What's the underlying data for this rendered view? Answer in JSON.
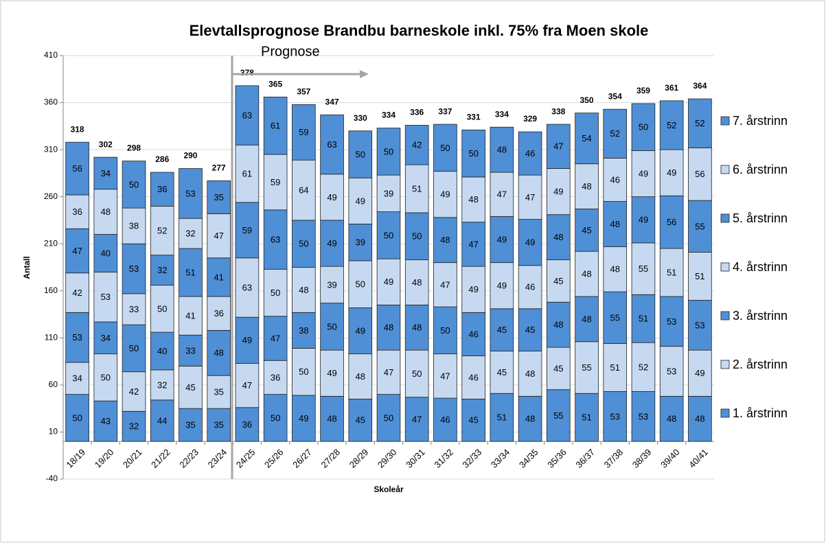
{
  "chart_data": {
    "type": "stacked_bar",
    "title": "Elevtallsprognose Brandbu barneskole inkl. 75% fra Moen skole",
    "x_label": "Skoleår",
    "y_label": "Antall",
    "annotations": [
      "Prognose"
    ],
    "categories": [
      "18/19",
      "19/20",
      "20/21",
      "21/22",
      "22/23",
      "23/24",
      "24/25",
      "25/26",
      "26/27",
      "27/28",
      "28/29",
      "29/30",
      "30/31",
      "31/32",
      "32/33",
      "33/34",
      "34/35",
      "35/36",
      "36/37",
      "37/38",
      "38/39",
      "39/40",
      "40/41"
    ],
    "series": [
      {
        "name": "1. årstrinn",
        "color": "#4f8fd6",
        "values": [
          50,
          43,
          32,
          44,
          35,
          35,
          36,
          50,
          49,
          48,
          45,
          50,
          47,
          46,
          45,
          51,
          48,
          55,
          51,
          53,
          53,
          48,
          48
        ]
      },
      {
        "name": "2. årstrinn",
        "color": "#c6d9f1",
        "values": [
          34,
          50,
          42,
          32,
          45,
          35,
          47,
          36,
          50,
          49,
          48,
          47,
          50,
          47,
          46,
          45,
          48,
          45,
          55,
          51,
          52,
          53,
          49
        ]
      },
      {
        "name": "3. årstrinn",
        "color": "#4f8fd6",
        "values": [
          53,
          34,
          50,
          40,
          33,
          48,
          49,
          47,
          38,
          50,
          49,
          48,
          48,
          50,
          46,
          45,
          45,
          48,
          48,
          55,
          51,
          53,
          53
        ]
      },
      {
        "name": "4. årstrinn",
        "color": "#c6d9f1",
        "values": [
          42,
          53,
          33,
          50,
          41,
          36,
          63,
          50,
          48,
          39,
          50,
          49,
          48,
          47,
          49,
          49,
          46,
          45,
          48,
          48,
          55,
          51,
          51
        ]
      },
      {
        "name": "5. årstrinn",
        "color": "#4f8fd6",
        "values": [
          47,
          40,
          53,
          32,
          51,
          41,
          59,
          63,
          50,
          49,
          39,
          50,
          50,
          48,
          47,
          49,
          49,
          48,
          45,
          48,
          49,
          56,
          55
        ]
      },
      {
        "name": "6. årstrinn",
        "color": "#c6d9f1",
        "values": [
          36,
          48,
          38,
          52,
          32,
          47,
          61,
          59,
          64,
          49,
          49,
          39,
          51,
          49,
          48,
          47,
          47,
          49,
          48,
          46,
          49,
          49,
          56
        ]
      },
      {
        "name": "7. årstrinn",
        "color": "#4f8fd6",
        "values": [
          56,
          34,
          50,
          36,
          53,
          35,
          63,
          61,
          59,
          63,
          50,
          50,
          42,
          50,
          50,
          48,
          46,
          47,
          54,
          52,
          50,
          52,
          52
        ]
      }
    ],
    "totals": [
      318,
      302,
      298,
      286,
      290,
      277,
      378,
      365,
      357,
      347,
      330,
      334,
      336,
      337,
      331,
      334,
      329,
      338,
      350,
      354,
      359,
      361,
      364
    ],
    "ylim": [
      -40,
      410
    ],
    "yticks": [
      -40,
      10,
      60,
      110,
      160,
      210,
      260,
      310,
      360,
      410
    ],
    "grid": true,
    "legend": "right"
  }
}
